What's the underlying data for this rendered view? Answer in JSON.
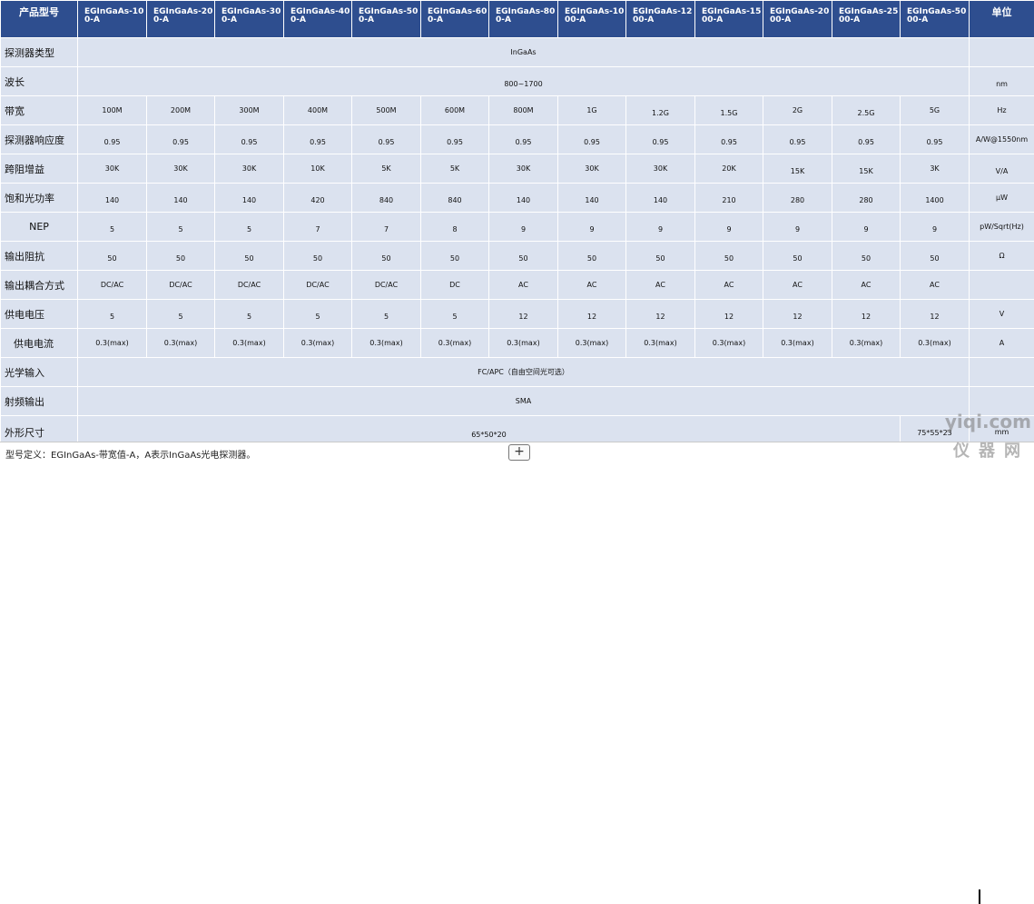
{
  "header": {
    "label": "产品型号",
    "models": [
      "EGInGaAs-100-A",
      "EGInGaAs-200-A",
      "EGInGaAs-300-A",
      "EGInGaAs-400-A",
      "EGInGaAs-500-A",
      "EGInGaAs-600-A",
      "EGInGaAs-800-A",
      "EGInGaAs-1000-A",
      "EGInGaAs-1200-A",
      "EGInGaAs-1500-A",
      "EGInGaAs-2000-A",
      "EGInGaAs-2500-A",
      "EGInGaAs-5000-A"
    ],
    "unit": "单位"
  },
  "rows": {
    "detector_type": {
      "label": "探测器类型",
      "value": "InGaAs",
      "unit": ""
    },
    "wavelength": {
      "label": "波长",
      "value": "800~1700",
      "unit": "nm"
    },
    "bandwidth": {
      "label": "带宽",
      "values": [
        "100M",
        "200M",
        "300M",
        "400M",
        "500M",
        "600M",
        "800M",
        "1G",
        "1.2G",
        "1.5G",
        "2G",
        "2.5G",
        "5G"
      ],
      "unit": "Hz"
    },
    "responsivity": {
      "label": "探测器响应度",
      "values": [
        "0.95",
        "0.95",
        "0.95",
        "0.95",
        "0.95",
        "0.95",
        "0.95",
        "0.95",
        "0.95",
        "0.95",
        "0.95",
        "0.95",
        "0.95"
      ],
      "unit": "A/W@1550nm"
    },
    "gain": {
      "label": "跨阻增益",
      "values": [
        "30K",
        "30K",
        "30K",
        "10K",
        "5K",
        "5K",
        "30K",
        "30K",
        "30K",
        "20K",
        "15K",
        "15K",
        "3K"
      ],
      "unit": "V/A"
    },
    "saturation": {
      "label": "饱和光功率",
      "values": [
        "140",
        "140",
        "140",
        "420",
        "840",
        "840",
        "140",
        "140",
        "140",
        "210",
        "280",
        "280",
        "1400"
      ],
      "unit": "μW"
    },
    "nep": {
      "label": "NEP",
      "values": [
        "5",
        "5",
        "5",
        "7",
        "7",
        "8",
        "9",
        "9",
        "9",
        "9",
        "9",
        "9",
        "9"
      ],
      "unit": "pW/Sqrt(Hz)"
    },
    "impedance": {
      "label": "输出阻抗",
      "values": [
        "50",
        "50",
        "50",
        "50",
        "50",
        "50",
        "50",
        "50",
        "50",
        "50",
        "50",
        "50",
        "50"
      ],
      "unit": "Ω"
    },
    "coupling": {
      "label": "输出耦合方式",
      "values": [
        "DC/AC",
        "DC/AC",
        "DC/AC",
        "DC/AC",
        "DC/AC",
        "DC",
        "AC",
        "AC",
        "AC",
        "AC",
        "AC",
        "AC",
        "AC"
      ],
      "unit": ""
    },
    "voltage": {
      "label": "供电电压",
      "values": [
        "5",
        "5",
        "5",
        "5",
        "5",
        "5",
        "12",
        "12",
        "12",
        "12",
        "12",
        "12",
        "12"
      ],
      "unit": "V"
    },
    "current": {
      "label": "供电电流",
      "values": [
        "0.3(max)",
        "0.3(max)",
        "0.3(max)",
        "0.3(max)",
        "0.3(max)",
        "0.3(max)",
        "0.3(max)",
        "0.3(max)",
        "0.3(max)",
        "0.3(max)",
        "0.3(max)",
        "0.3(max)",
        "0.3(max)"
      ],
      "unit": "A"
    },
    "optical_input": {
      "label": "光学输入",
      "value": "FC/APC（自由空间光可选）",
      "unit": ""
    },
    "rf_output": {
      "label": "射频输出",
      "value": "SMA",
      "unit": ""
    },
    "dimensions": {
      "label": "外形尺寸",
      "value": "65*50*20",
      "value_alt": "75*55*23",
      "unit": "mm"
    }
  },
  "footer": {
    "note": "型号定义：EGInGaAs-带宽值-A，A表示InGaAs光电探测器。",
    "add_button": "+"
  },
  "watermark": {
    "domain": "yiqi.com",
    "cn": "仪器网"
  },
  "colors": {
    "header_bg": "#2e4e8f",
    "cell_bg": "#dbe2ef"
  }
}
